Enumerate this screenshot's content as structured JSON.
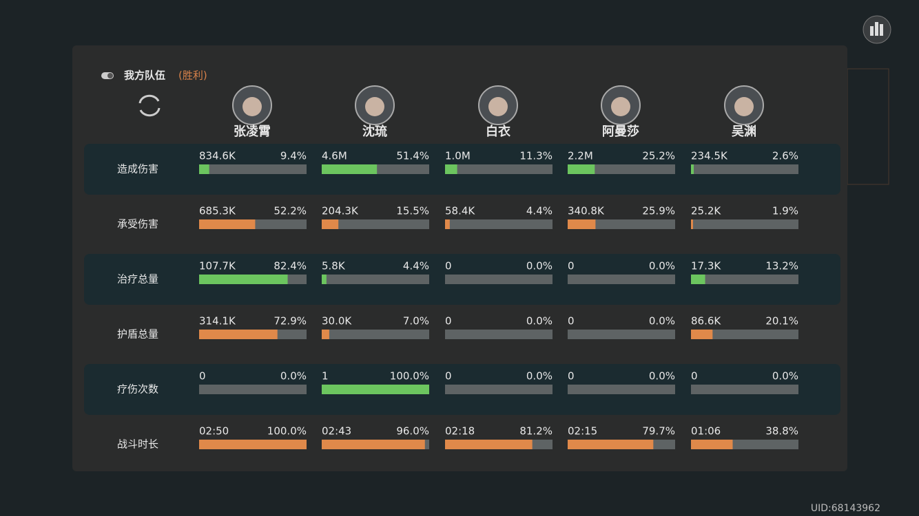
{
  "header": {
    "title": "我方队伍",
    "status": "(胜利)"
  },
  "players": [
    "张凌霄",
    "沈琉",
    "白衣",
    "阿曼莎",
    "吴渊"
  ],
  "rows": [
    {
      "label": "造成伤害",
      "color": "#6cc55f",
      "cells": [
        {
          "value": "834.6K",
          "share": {
            "value": 9.4,
            "label": "9.4%"
          }
        },
        {
          "value": "4.6M",
          "share": {
            "value": 51.4,
            "label": "51.4%"
          }
        },
        {
          "value": "1.0M",
          "share": {
            "value": 11.3,
            "label": "11.3%"
          }
        },
        {
          "value": "2.2M",
          "share": {
            "value": 25.2,
            "label": "25.2%"
          }
        },
        {
          "value": "234.5K",
          "share": {
            "value": 2.6,
            "label": "2.6%"
          }
        }
      ]
    },
    {
      "label": "承受伤害",
      "color": "#e0894a",
      "cells": [
        {
          "value": "685.3K",
          "share": {
            "value": 52.2,
            "label": "52.2%"
          }
        },
        {
          "value": "204.3K",
          "share": {
            "value": 15.5,
            "label": "15.5%"
          }
        },
        {
          "value": "58.4K",
          "share": {
            "value": 4.4,
            "label": "4.4%"
          }
        },
        {
          "value": "340.8K",
          "share": {
            "value": 25.9,
            "label": "25.9%"
          }
        },
        {
          "value": "25.2K",
          "share": {
            "value": 1.9,
            "label": "1.9%"
          }
        }
      ]
    },
    {
      "label": "治疗总量",
      "color": "#6cc55f",
      "cells": [
        {
          "value": "107.7K",
          "share": {
            "value": 82.4,
            "label": "82.4%"
          }
        },
        {
          "value": "5.8K",
          "share": {
            "value": 4.4,
            "label": "4.4%"
          }
        },
        {
          "value": "0",
          "share": {
            "value": 0,
            "label": "0.0%"
          }
        },
        {
          "value": "0",
          "share": {
            "value": 0,
            "label": "0.0%"
          }
        },
        {
          "value": "17.3K",
          "share": {
            "value": 13.2,
            "label": "13.2%"
          }
        }
      ]
    },
    {
      "label": "护盾总量",
      "color": "#e0894a",
      "cells": [
        {
          "value": "314.1K",
          "share": {
            "value": 72.9,
            "label": "72.9%"
          }
        },
        {
          "value": "30.0K",
          "share": {
            "value": 7.0,
            "label": "7.0%"
          }
        },
        {
          "value": "0",
          "share": {
            "value": 0,
            "label": "0.0%"
          }
        },
        {
          "value": "0",
          "share": {
            "value": 0,
            "label": "0.0%"
          }
        },
        {
          "value": "86.6K",
          "share": {
            "value": 20.1,
            "label": "20.1%"
          }
        }
      ]
    },
    {
      "label": "疗伤次数",
      "color": "#6cc55f",
      "cells": [
        {
          "value": "0",
          "share": {
            "value": 0,
            "label": "0.0%"
          }
        },
        {
          "value": "1",
          "share": {
            "value": 100.0,
            "label": "100.0%"
          }
        },
        {
          "value": "0",
          "share": {
            "value": 0,
            "label": "0.0%"
          }
        },
        {
          "value": "0",
          "share": {
            "value": 0,
            "label": "0.0%"
          }
        },
        {
          "value": "0",
          "share": {
            "value": 0,
            "label": "0.0%"
          }
        }
      ]
    },
    {
      "label": "战斗时长",
      "color": "#e0894a",
      "cells": [
        {
          "value": "02:50",
          "share": {
            "value": 100.0,
            "label": "100.0%"
          }
        },
        {
          "value": "02:43",
          "share": {
            "value": 96.0,
            "label": "96.0%"
          }
        },
        {
          "value": "02:18",
          "share": {
            "value": 81.2,
            "label": "81.2%"
          }
        },
        {
          "value": "02:15",
          "share": {
            "value": 79.7,
            "label": "79.7%"
          }
        },
        {
          "value": "01:06",
          "share": {
            "value": 38.8,
            "label": "38.8%"
          }
        }
      ]
    }
  ],
  "footer": {
    "uid": "UID:68143962"
  }
}
